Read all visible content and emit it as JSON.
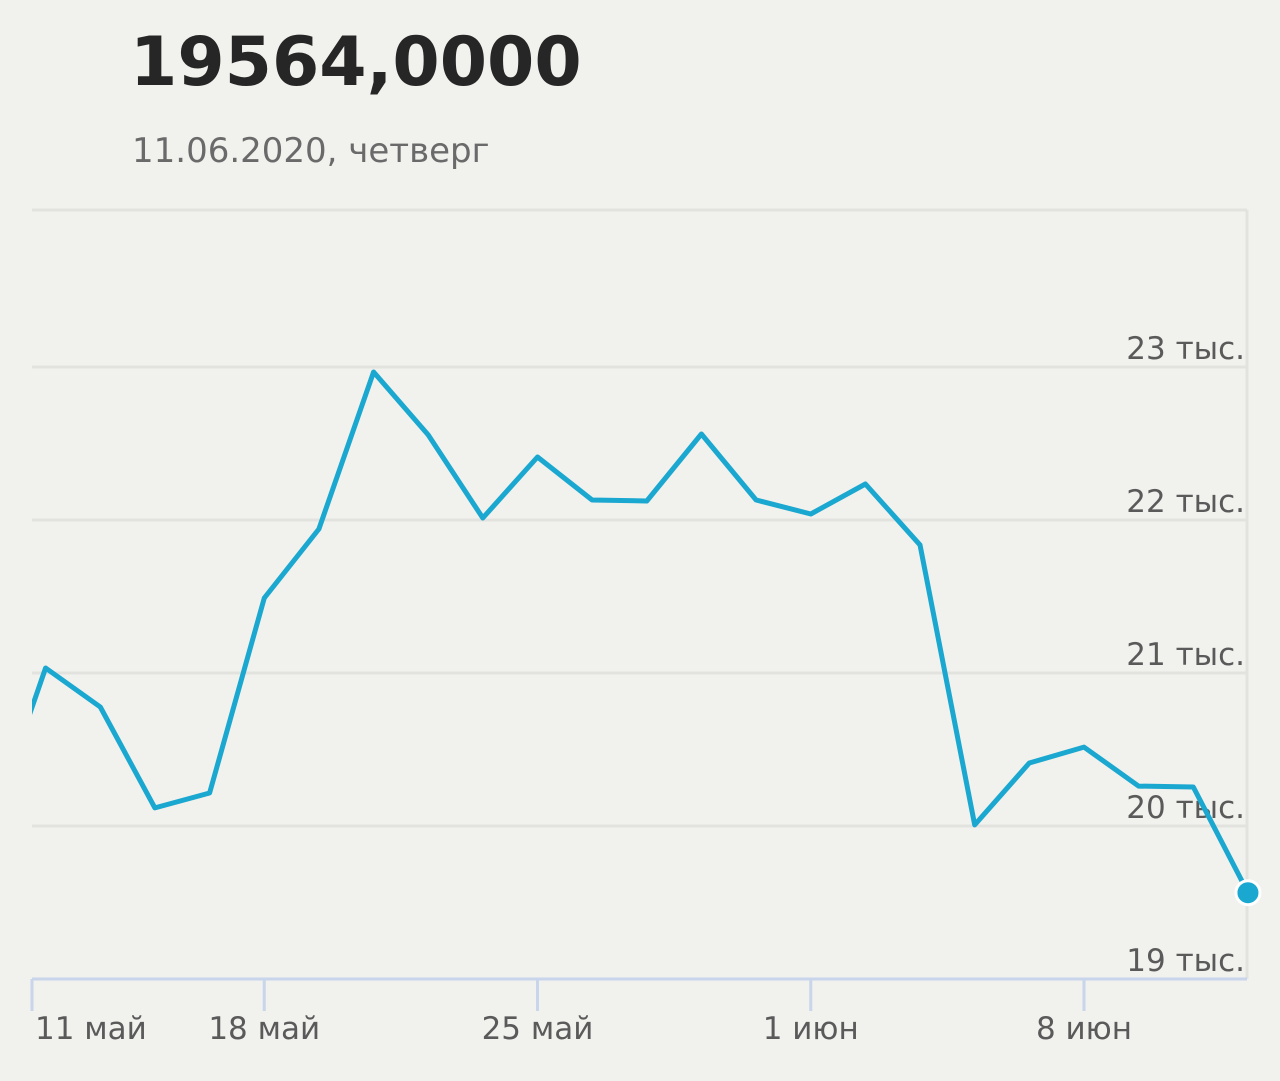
{
  "chart_data": {
    "type": "line",
    "title": "19564,0000",
    "subtitle": "11.06.2020, четверг",
    "categories": [
      "11 май",
      null,
      null,
      null,
      null,
      "18 май",
      null,
      null,
      null,
      null,
      "25 май",
      null,
      null,
      null,
      null,
      "1 июн",
      null,
      null,
      null,
      null,
      "8 июн",
      null,
      null,
      null
    ],
    "series": [
      {
        "color": "#1aa7d0",
        "values": [
          20000,
          21033,
          20778,
          20118,
          20216,
          21490,
          21941,
          22967,
          22556,
          22013,
          22412,
          22131,
          22124,
          22562,
          22131,
          22039,
          22235,
          21837,
          20007,
          20412,
          20516,
          20261,
          20255,
          19564
        ]
      }
    ],
    "ylim": [
      19000,
      24000
    ],
    "yticks": [
      {
        "value": 19000,
        "label": "19 тыс."
      },
      {
        "value": 20000,
        "label": "20 тыс."
      },
      {
        "value": 21000,
        "label": "21 тыс."
      },
      {
        "value": 22000,
        "label": "22 тыс."
      },
      {
        "value": 23000,
        "label": "23 тыс."
      }
    ],
    "grid": true
  }
}
